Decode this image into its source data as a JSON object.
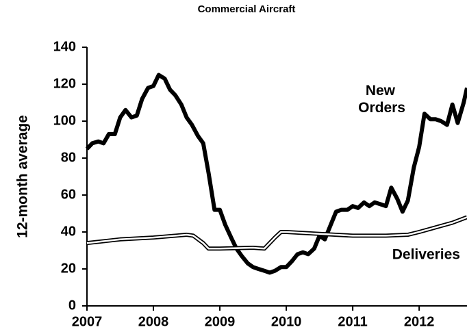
{
  "chart_data": {
    "type": "line",
    "subtitle": "Commercial Aircraft",
    "y_label": "12-month average",
    "xlim": [
      2007,
      2012.72
    ],
    "xticks": [
      2007,
      2008,
      2009,
      2010,
      2011,
      2012
    ],
    "ylim": [
      0,
      140
    ],
    "yticks": [
      0,
      20,
      40,
      60,
      80,
      100,
      120,
      140
    ],
    "grid": false,
    "series": [
      {
        "name": "New Orders",
        "color": "#000000",
        "style": "thick",
        "x": [
          2007.0,
          2007.08,
          2007.17,
          2007.25,
          2007.33,
          2007.42,
          2007.5,
          2007.58,
          2007.67,
          2007.75,
          2007.83,
          2007.92,
          2008.0,
          2008.08,
          2008.17,
          2008.25,
          2008.33,
          2008.42,
          2008.5,
          2008.58,
          2008.67,
          2008.75,
          2008.83,
          2008.92,
          2009.0,
          2009.08,
          2009.17,
          2009.25,
          2009.33,
          2009.42,
          2009.5,
          2009.58,
          2009.67,
          2009.75,
          2009.83,
          2009.92,
          2010.0,
          2010.08,
          2010.17,
          2010.25,
          2010.33,
          2010.42,
          2010.5,
          2010.58,
          2010.67,
          2010.75,
          2010.83,
          2010.92,
          2011.0,
          2011.08,
          2011.17,
          2011.25,
          2011.33,
          2011.42,
          2011.5,
          2011.58,
          2011.67,
          2011.75,
          2011.83,
          2011.92,
          2012.0,
          2012.08,
          2012.17,
          2012.25,
          2012.33,
          2012.42,
          2012.5,
          2012.58,
          2012.67,
          2012.72
        ],
        "values": [
          85,
          88,
          89,
          88,
          93,
          93,
          102,
          106,
          102,
          103,
          112,
          118,
          119,
          125,
          123,
          117,
          114,
          109,
          102,
          98,
          92,
          88,
          72,
          52,
          52,
          44,
          37,
          31,
          27,
          23,
          21,
          20,
          19,
          18,
          19,
          21,
          21,
          24,
          28,
          29,
          28,
          31,
          38,
          36,
          44,
          51,
          52,
          52,
          54,
          53,
          56,
          54,
          56,
          55,
          54,
          64,
          58,
          51,
          57,
          75,
          86,
          104,
          101,
          101,
          100,
          98,
          109,
          99,
          110,
          118
        ]
      },
      {
        "name": "Deliveries",
        "color": "#000000",
        "style": "double",
        "x": [
          2007.0,
          2007.5,
          2008.0,
          2008.5,
          2008.6,
          2008.75,
          2008.83,
          2009.0,
          2009.5,
          2009.67,
          2009.83,
          2009.92,
          2010.0,
          2010.5,
          2011.0,
          2011.5,
          2011.83,
          2012.0,
          2012.5,
          2012.72
        ],
        "values": [
          34,
          36,
          37,
          38.5,
          38,
          34,
          31,
          31,
          31.5,
          31,
          37,
          40,
          40,
          39,
          38,
          38,
          38.5,
          40,
          45,
          48
        ]
      }
    ]
  }
}
